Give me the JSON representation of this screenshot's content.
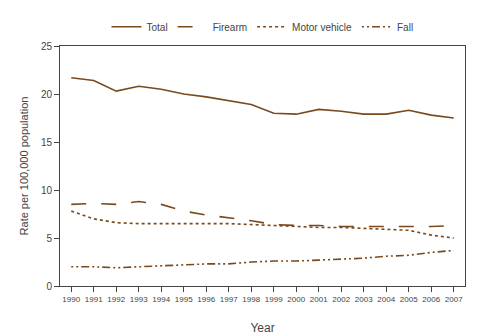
{
  "chart_data": {
    "type": "line",
    "x": [
      1990,
      1991,
      1992,
      1993,
      1994,
      1995,
      1996,
      1997,
      1998,
      1999,
      2000,
      2001,
      2002,
      2003,
      2004,
      2005,
      2006,
      2007
    ],
    "series": [
      {
        "name": "Total",
        "color": "#7a4a1e",
        "line_style": "solid",
        "values": [
          21.7,
          21.4,
          20.3,
          20.8,
          20.5,
          20.0,
          19.7,
          19.3,
          18.9,
          18.0,
          17.9,
          18.4,
          18.2,
          17.9,
          17.9,
          18.3,
          17.8,
          17.5
        ]
      },
      {
        "name": "Firearm",
        "color": "#7a4a1e",
        "line_style": "dashed",
        "values": [
          8.5,
          8.6,
          8.5,
          8.8,
          8.5,
          7.8,
          7.4,
          7.1,
          6.8,
          6.4,
          6.3,
          6.3,
          6.2,
          6.2,
          6.2,
          6.2,
          6.2,
          6.3
        ]
      },
      {
        "name": "Motor vehicle",
        "color": "#7a4a1e",
        "line_style": "dotted",
        "values": [
          7.8,
          7.0,
          6.6,
          6.5,
          6.5,
          6.5,
          6.5,
          6.5,
          6.4,
          6.3,
          6.2,
          6.1,
          6.1,
          6.0,
          5.9,
          5.8,
          5.3,
          5.0
        ]
      },
      {
        "name": "Fall",
        "color": "#7a4a1e",
        "line_style": "dashdot",
        "values": [
          2.0,
          2.0,
          1.9,
          2.0,
          2.1,
          2.2,
          2.3,
          2.3,
          2.5,
          2.6,
          2.6,
          2.7,
          2.8,
          2.9,
          3.1,
          3.2,
          3.5,
          3.7
        ]
      }
    ],
    "x_label": "Year",
    "y_label": "Rate per 100,000 population",
    "xlim": [
      1989.5,
      2007.5
    ],
    "xticks": [
      1990,
      1991,
      1992,
      1993,
      1994,
      1995,
      1996,
      1997,
      1998,
      1999,
      2000,
      2001,
      2002,
      2003,
      2004,
      2005,
      2006,
      2007
    ],
    "ylim": [
      0,
      25
    ],
    "yticks": [
      0,
      5,
      10,
      15,
      20,
      25
    ],
    "grid": false,
    "legend": "top"
  }
}
